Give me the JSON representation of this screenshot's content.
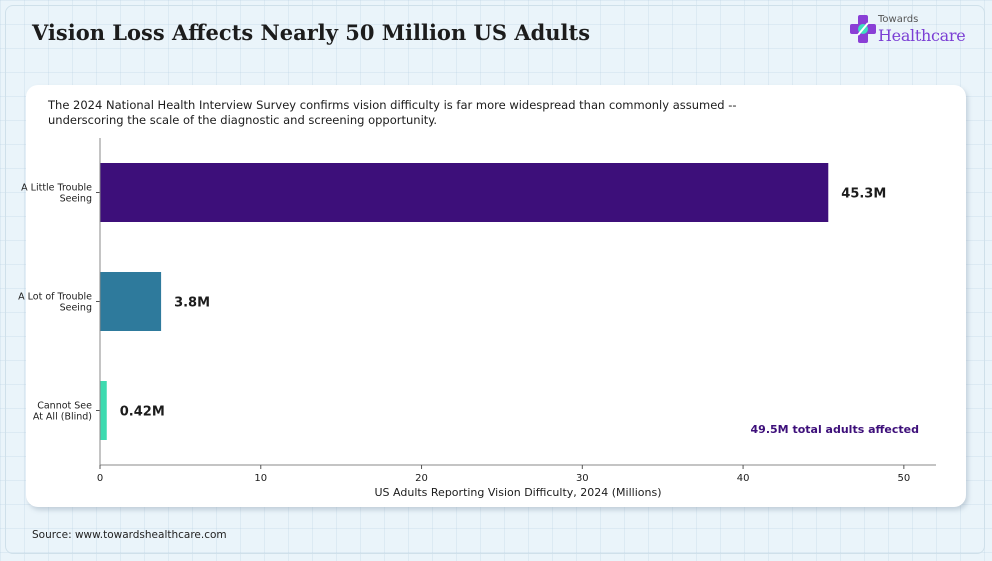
{
  "page": {
    "title": "Vision Loss Affects Nearly 50 Million US Adults",
    "subtitle": "The 2024 National Health Interview Survey confirms vision difficulty is far more widespread than commonly assumed -- underscoring the scale of the diagnostic and screening opportunity.",
    "source": "Source: www.towardshealthcare.com"
  },
  "logo": {
    "top_text": "Towards",
    "bottom_text": "Healthcare",
    "icon": "medical-cross-icon"
  },
  "colors": {
    "background": "#eaf4fa",
    "title": "#1c1c1c",
    "logo_accent": "#7b3fd4",
    "annotation": "#3d0f7a"
  },
  "chart_data": {
    "type": "bar",
    "orientation": "horizontal",
    "categories": [
      [
        "A Little Trouble",
        "Seeing"
      ],
      [
        "A Lot of Trouble",
        "Seeing"
      ],
      [
        "Cannot See",
        "At All (Blind)"
      ]
    ],
    "values": [
      45.3,
      3.8,
      0.42
    ],
    "data_labels": [
      "45.3M",
      "3.8M",
      "0.42M"
    ],
    "bar_colors": [
      "#3d0f7a",
      "#2e7a9c",
      "#3ddbb0"
    ],
    "xlabel": "US Adults Reporting Vision Difficulty, 2024 (Millions)",
    "ylabel": "",
    "xlim": [
      0,
      52
    ],
    "xticks": [
      0,
      10,
      20,
      30,
      40,
      50
    ],
    "grid": false,
    "legend": "none",
    "annotation": "49.5M total adults affected"
  }
}
